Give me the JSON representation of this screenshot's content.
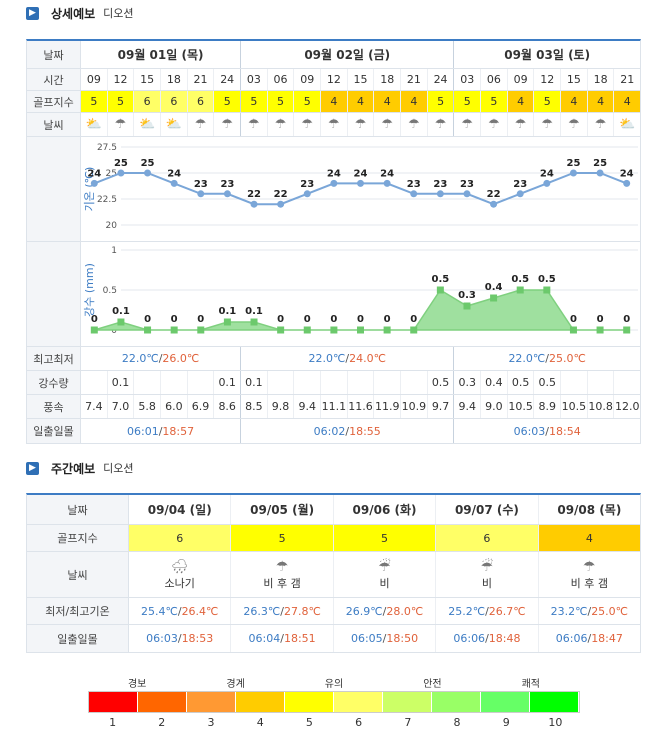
{
  "detail": {
    "title": "상세예보",
    "place": "디오션",
    "labels": {
      "date": "날짜",
      "time": "시간",
      "golf": "골프지수",
      "weather": "날씨",
      "temp_axis": "기온 (℃)",
      "rain_axis": "강수 (mm)",
      "minmax": "최고최저",
      "rain": "강수량",
      "wind": "풍속",
      "sun": "일출일몰"
    },
    "days": [
      "09월 01일 (목)",
      "09월 02일 (금)",
      "09월 03일 (토)"
    ],
    "times": [
      "09",
      "12",
      "15",
      "18",
      "21",
      "24",
      "03",
      "06",
      "09",
      "12",
      "15",
      "18",
      "21",
      "24",
      "03",
      "06",
      "09",
      "12",
      "15",
      "18",
      "21"
    ],
    "golf": [
      "5",
      "5",
      "6",
      "6",
      "6",
      "5",
      "5",
      "5",
      "5",
      "4",
      "4",
      "4",
      "4",
      "5",
      "5",
      "5",
      "4",
      "5",
      "4",
      "4",
      "4"
    ],
    "weather_icons": [
      "cloud-sun-icon",
      "cloud-rain-icon",
      "cloud-sun-icon",
      "cloud-sun-icon",
      "cloud-rain-icon",
      "cloud-rain-icon",
      "cloud-rain-icon",
      "cloud-rain-icon",
      "cloud-rain-icon",
      "cloud-rain-icon",
      "cloud-rain-icon",
      "cloud-rain-icon",
      "cloud-rain-icon",
      "cloud-rain-icon",
      "cloud-rain-icon",
      "cloud-rain-icon",
      "cloud-rain-icon",
      "cloud-rain-icon",
      "cloud-rain-icon",
      "cloud-rain-icon",
      "cloud-sun-icon"
    ],
    "temps": [
      "24",
      "25",
      "25",
      "24",
      "23",
      "23",
      "22",
      "22",
      "23",
      "24",
      "24",
      "24",
      "23",
      "23",
      "23",
      "22",
      "23",
      "24",
      "25",
      "25",
      "24"
    ],
    "temp_ticks": [
      "27.5",
      "25",
      "22.5",
      "20"
    ],
    "rain_ticks": [
      "1",
      "0.5",
      "0"
    ],
    "rain_labels": [
      "0",
      "0.1",
      "0",
      "0",
      "0",
      "0.1",
      "0.1",
      "0",
      "0",
      "0",
      "0",
      "0",
      "0",
      "0.5",
      "0.3",
      "0.4",
      "0.5",
      "0.5",
      "0",
      "0",
      "0"
    ],
    "minmax": [
      {
        "min": "22.0℃",
        "max": "26.0℃"
      },
      {
        "min": "22.0℃",
        "max": "24.0℃"
      },
      {
        "min": "22.0℃",
        "max": "25.0℃"
      }
    ],
    "rain": [
      "",
      "0.1",
      "",
      "",
      "",
      "0.1",
      "0.1",
      "",
      "",
      "",
      "",
      "",
      "",
      "0.5",
      "0.3",
      "0.4",
      "0.5",
      "0.5",
      "",
      "",
      ""
    ],
    "wind": [
      "7.4",
      "7.0",
      "5.8",
      "6.0",
      "6.9",
      "8.6",
      "8.5",
      "9.8",
      "9.4",
      "11.1",
      "11.6",
      "11.9",
      "10.9",
      "9.7",
      "9.4",
      "9.0",
      "10.5",
      "8.9",
      "10.5",
      "10.8",
      "12.0"
    ],
    "sun": [
      {
        "rise": "06:01",
        "set": "18:57"
      },
      {
        "rise": "06:02",
        "set": "18:55"
      },
      {
        "rise": "06:03",
        "set": "18:54"
      }
    ]
  },
  "weekly": {
    "title": "주간예보",
    "place": "디오션",
    "labels": {
      "date": "날짜",
      "golf": "골프지수",
      "weather": "날씨",
      "minmax": "최저/최고기온",
      "sun": "일출일몰"
    },
    "days": [
      {
        "date": "09/04 (일)",
        "golf": "6",
        "icon": "shower-icon",
        "desc": "소나기",
        "min": "25.4℃",
        "max": "26.4℃",
        "rise": "06:03",
        "set": "18:53"
      },
      {
        "date": "09/05 (월)",
        "golf": "5",
        "icon": "rain-then-clear-icon",
        "desc": "비 후 갬",
        "min": "26.3℃",
        "max": "27.8℃",
        "rise": "06:04",
        "set": "18:51"
      },
      {
        "date": "09/06 (화)",
        "golf": "5",
        "icon": "rain-icon",
        "desc": "비",
        "min": "26.9℃",
        "max": "28.0℃",
        "rise": "06:05",
        "set": "18:50"
      },
      {
        "date": "09/07 (수)",
        "golf": "6",
        "icon": "rain-icon",
        "desc": "비",
        "min": "25.2℃",
        "max": "26.7℃",
        "rise": "06:06",
        "set": "18:48"
      },
      {
        "date": "09/08 (목)",
        "golf": "4",
        "icon": "rain-then-clear-icon",
        "desc": "비 후 갬",
        "min": "23.2℃",
        "max": "25.0℃",
        "rise": "06:06",
        "set": "18:47"
      }
    ]
  },
  "scale": {
    "names": [
      "경보",
      "경계",
      "유의",
      "안전",
      "쾌적"
    ],
    "numbers": [
      "1",
      "2",
      "3",
      "4",
      "5",
      "6",
      "7",
      "8",
      "9",
      "10"
    ],
    "colors": [
      "#ff0000",
      "#ff6600",
      "#ff9933",
      "#ffcc00",
      "#ffff00",
      "#ffff66",
      "#ccff66",
      "#99ff66",
      "#66ff66",
      "#00ff00"
    ]
  },
  "chart_data": [
    {
      "type": "line",
      "ylabel": "기온 (℃)",
      "x": [
        "09",
        "12",
        "15",
        "18",
        "21",
        "24",
        "03",
        "06",
        "09",
        "12",
        "15",
        "18",
        "21",
        "24",
        "03",
        "06",
        "09",
        "12",
        "15",
        "18",
        "21"
      ],
      "values": [
        24,
        25,
        25,
        24,
        23,
        23,
        22,
        22,
        23,
        24,
        24,
        24,
        23,
        23,
        23,
        22,
        23,
        24,
        25,
        25,
        24
      ],
      "ylim": [
        20,
        27.5
      ],
      "yticks": [
        27.5,
        25,
        22.5,
        20
      ],
      "grid": true
    },
    {
      "type": "area",
      "ylabel": "강수 (mm)",
      "x": [
        "09",
        "12",
        "15",
        "18",
        "21",
        "24",
        "03",
        "06",
        "09",
        "12",
        "15",
        "18",
        "21",
        "24",
        "03",
        "06",
        "09",
        "12",
        "15",
        "18",
        "21"
      ],
      "values": [
        0,
        0.1,
        0,
        0,
        0,
        0.1,
        0.1,
        0,
        0,
        0,
        0,
        0,
        0,
        0.5,
        0.3,
        0.4,
        0.5,
        0.5,
        0,
        0,
        0
      ],
      "ylim": [
        0,
        1
      ],
      "yticks": [
        1,
        0.5,
        0
      ],
      "grid": true
    }
  ]
}
